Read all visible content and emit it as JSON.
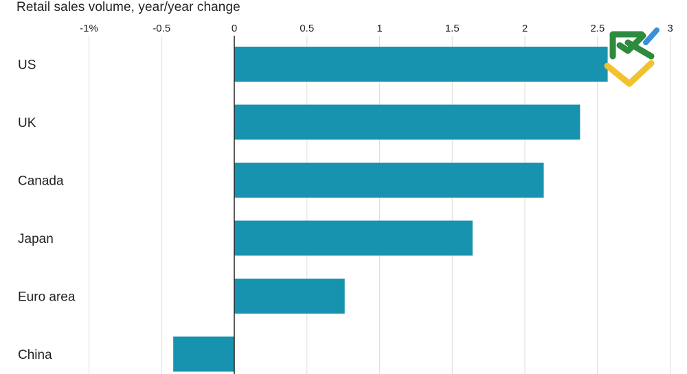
{
  "chart_data": {
    "type": "bar",
    "orientation": "horizontal",
    "title": "Retail sales volume, year/year change",
    "xlabel": "",
    "ylabel": "",
    "categories": [
      "US",
      "UK",
      "Canada",
      "Japan",
      "Euro area",
      "China"
    ],
    "values": [
      2.57,
      2.38,
      2.13,
      1.64,
      0.76,
      -0.42
    ],
    "xlim": [
      -1,
      3
    ],
    "ticks": [
      {
        "value": -1,
        "label": "-1%"
      },
      {
        "value": -0.5,
        "label": "-0.5"
      },
      {
        "value": 0,
        "label": "0"
      },
      {
        "value": 0.5,
        "label": "0.5"
      },
      {
        "value": 1,
        "label": "1"
      },
      {
        "value": 1.5,
        "label": "1.5"
      },
      {
        "value": 2,
        "label": "2"
      },
      {
        "value": 2.5,
        "label": "2.5"
      },
      {
        "value": 3,
        "label": "3"
      }
    ],
    "grid": true,
    "bar_color": "#1793b0",
    "grid_color": "#dddddd",
    "axis_color": "#222222"
  },
  "watermark": {
    "icon": "brand-logo-icon",
    "colors": [
      "#2e8b3e",
      "#f2c12e",
      "#3a8fd8"
    ]
  }
}
